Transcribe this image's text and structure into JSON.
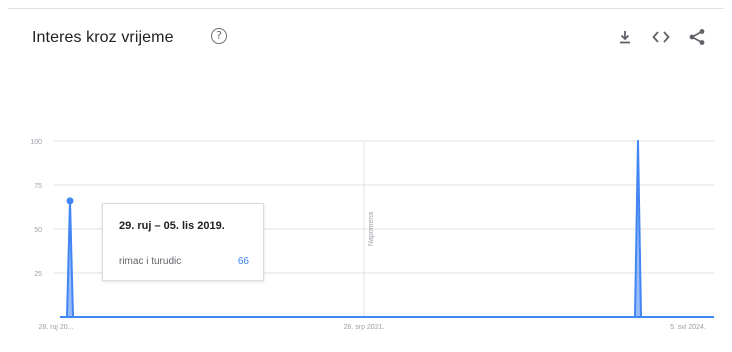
{
  "header": {
    "title": "Interes kroz vrijeme",
    "help_icon": "help-circle-icon",
    "actions": [
      {
        "icon": "download-icon"
      },
      {
        "icon": "embed-code-icon"
      },
      {
        "icon": "share-icon"
      }
    ]
  },
  "tooltip": {
    "date": "29. ruj – 05. lis 2019.",
    "term": "rimac i turudic",
    "value": "66"
  },
  "note_label": "Napomena",
  "colors": {
    "series": "#4285f4",
    "grid": "#e0e0e0",
    "axis_text": "#9aa0a6"
  },
  "chart_data": {
    "type": "area",
    "x_tick_labels": [
      "28. ruj 20...",
      "26. srp 2021.",
      "5. svi 2024."
    ],
    "y_tick_labels": [
      "100",
      "75",
      "50",
      "25"
    ],
    "ylim": [
      0,
      100
    ],
    "grid": true,
    "series": [
      {
        "name": "rimac i turudic",
        "points": [
          {
            "x": "29. ruj – 05. lis 2019.",
            "y": 66
          },
          {
            "x": "5. svi 2024.",
            "y": 100
          }
        ]
      }
    ]
  }
}
